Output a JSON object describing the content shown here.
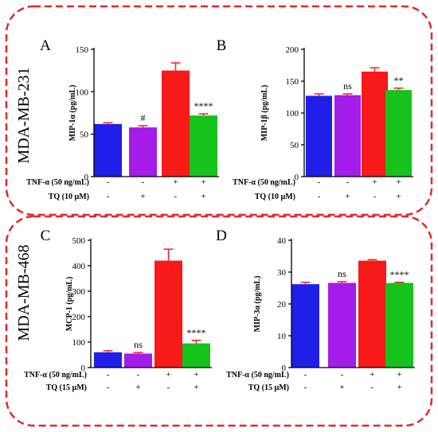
{
  "colors": {
    "frame": "#e8262c",
    "control": "#1f1fe8",
    "tq": "#a31ce8",
    "tnf": "#f81919",
    "tnf_tq": "#16c21c",
    "error": "#ff1a1a",
    "axis": "#000000"
  },
  "sections": [
    {
      "label": "MDA-MB-231"
    },
    {
      "label": "MDA-MB-468"
    }
  ],
  "chart_data": [
    {
      "type": "bar",
      "panel": "A",
      "ylabel": "MIP-1α (pg/mL)",
      "ylim": [
        0,
        150
      ],
      "yticks": [
        0,
        50,
        100,
        150
      ],
      "values": [
        62,
        58,
        125,
        72
      ],
      "errors": [
        1.5,
        2,
        9,
        2
      ],
      "annotations": [
        "",
        "#",
        "",
        "****"
      ],
      "conditions": [
        {
          "label": "TNF-α (50 ng/mL)",
          "signs": [
            "-",
            "-",
            "+",
            "+"
          ]
        },
        {
          "label": "TQ (10 µM)",
          "signs": [
            "-",
            "+",
            "-",
            "+"
          ]
        }
      ]
    },
    {
      "type": "bar",
      "panel": "B",
      "ylabel": "MIP-1β (pg/mL)",
      "ylim": [
        0,
        200
      ],
      "yticks": [
        0,
        50,
        100,
        150,
        200
      ],
      "values": [
        127,
        128,
        165,
        136
      ],
      "errors": [
        3,
        2,
        6,
        3
      ],
      "annotations": [
        "",
        "ns",
        "",
        "**"
      ],
      "conditions": [
        {
          "label": "TNF-α (50 ng/mL)",
          "signs": [
            "-",
            "-",
            "+",
            "+"
          ]
        },
        {
          "label": "TQ (10 µM)",
          "signs": [
            "-",
            "+",
            "-",
            "+"
          ]
        }
      ]
    },
    {
      "type": "bar",
      "panel": "C",
      "ylabel": "MCP-1 (pg/mL)",
      "ylim": [
        0,
        500
      ],
      "yticks": [
        0,
        100,
        200,
        300,
        400,
        500
      ],
      "values": [
        60,
        55,
        420,
        95
      ],
      "errors": [
        6,
        4,
        45,
        12
      ],
      "annotations": [
        "",
        "ns",
        "",
        "****"
      ],
      "conditions": [
        {
          "label": "TNF-α (50 ng/mL)",
          "signs": [
            "-",
            "-",
            "+",
            "+"
          ]
        },
        {
          "label": "TQ (15 µM)",
          "signs": [
            "-",
            "+",
            "-",
            "+"
          ]
        }
      ]
    },
    {
      "type": "bar",
      "panel": "D",
      "ylabel": "MIP-3α (pg/mL)",
      "ylim": [
        0,
        40
      ],
      "yticks": [
        0,
        10,
        20,
        30,
        40
      ],
      "values": [
        26.2,
        26.6,
        33.6,
        26.6
      ],
      "errors": [
        0.6,
        0.4,
        0.3,
        0.2
      ],
      "annotations": [
        "",
        "ns",
        "",
        "****"
      ],
      "conditions": [
        {
          "label": "TNF-α (50 ng/mL)",
          "signs": [
            "-",
            "-",
            "+",
            "+"
          ]
        },
        {
          "label": "TQ (15 µM)",
          "signs": [
            "-",
            "+",
            "-",
            "+"
          ]
        }
      ]
    }
  ]
}
